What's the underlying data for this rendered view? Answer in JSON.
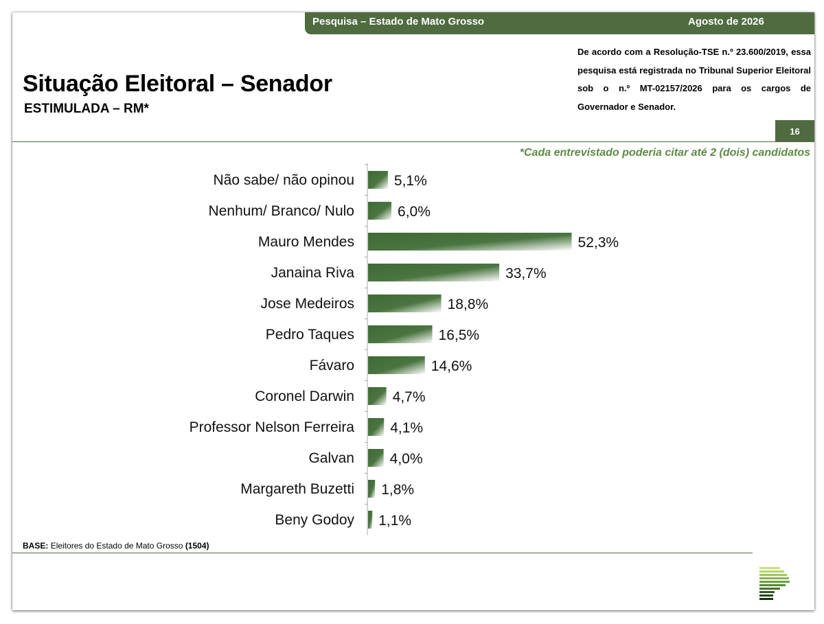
{
  "header": {
    "survey_label": "Pesquisa – Estado de Mato Grosso",
    "date_label": "Agosto de 2026"
  },
  "title": "Situação Eleitoral – Senador",
  "subtitle": "ESTIMULADA – RM*",
  "registration_note": "De acordo com a Resolução-TSE n.º 23.600/2019, essa pesquisa está registrada no Tribunal Superior Eleitoral sob o n.º MT-02157/2026 para os cargos de Governador e Senador.",
  "page_number": "16",
  "footnote": "*Cada entrevistado poderia citar até 2 (dois) candidatos",
  "base": {
    "label": "BASE:",
    "text": "Eleitores do Estado de Mato Grosso",
    "count": "(1504)"
  },
  "colors": {
    "brand_green": "#4f6b3f",
    "bar_dark": "#3f6a35",
    "bar_light": "#ffffff",
    "footnote_green": "#5c8a44"
  },
  "chart_data": {
    "type": "bar",
    "orientation": "horizontal",
    "categories": [
      "Não sabe/ não opinou",
      "Nenhum/ Branco/ Nulo",
      "Mauro Mendes",
      "Janaina Riva",
      "Jose Medeiros",
      "Pedro Taques",
      "Fávaro",
      "Coronel Darwin",
      "Professor Nelson Ferreira",
      "Galvan",
      "Margareth Buzetti",
      "Beny Godoy"
    ],
    "values": [
      5.1,
      6.0,
      52.3,
      33.7,
      18.8,
      16.5,
      14.6,
      4.7,
      4.1,
      4.0,
      1.8,
      1.1
    ],
    "value_labels": [
      "5,1%",
      "6,0%",
      "52,3%",
      "33,7%",
      "18,8%",
      "16,5%",
      "14,6%",
      "4,7%",
      "4,1%",
      "4,0%",
      "1,8%",
      "1,1%"
    ],
    "xlim": [
      0,
      100
    ],
    "grid": false,
    "legend": "none"
  }
}
